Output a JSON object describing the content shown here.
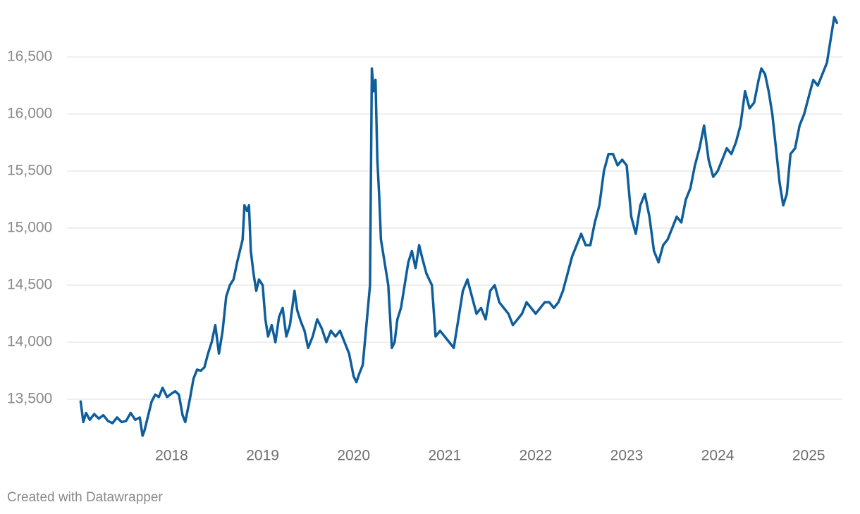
{
  "chart_data": {
    "type": "line",
    "x": [
      2017.0,
      2017.03,
      2017.06,
      2017.1,
      2017.15,
      2017.2,
      2017.25,
      2017.3,
      2017.35,
      2017.4,
      2017.45,
      2017.5,
      2017.55,
      2017.6,
      2017.65,
      2017.68,
      2017.7,
      2017.74,
      2017.78,
      2017.82,
      2017.86,
      2017.9,
      2017.95,
      2018.0,
      2018.04,
      2018.08,
      2018.12,
      2018.15,
      2018.2,
      2018.24,
      2018.28,
      2018.32,
      2018.36,
      2018.4,
      2018.44,
      2018.48,
      2018.52,
      2018.56,
      2018.6,
      2018.64,
      2018.68,
      2018.72,
      2018.75,
      2018.78,
      2018.8,
      2018.83,
      2018.85,
      2018.87,
      2018.9,
      2018.93,
      2018.96,
      2019.0,
      2019.03,
      2019.06,
      2019.1,
      2019.14,
      2019.18,
      2019.22,
      2019.26,
      2019.3,
      2019.35,
      2019.38,
      2019.42,
      2019.46,
      2019.5,
      2019.55,
      2019.6,
      2019.65,
      2019.7,
      2019.75,
      2019.8,
      2019.85,
      2019.9,
      2019.95,
      2020.0,
      2020.03,
      2020.06,
      2020.1,
      2020.14,
      2020.18,
      2020.2,
      2020.22,
      2020.24,
      2020.26,
      2020.28,
      2020.3,
      2020.34,
      2020.38,
      2020.42,
      2020.45,
      2020.48,
      2020.52,
      2020.56,
      2020.6,
      2020.64,
      2020.68,
      2020.72,
      2020.75,
      2020.8,
      2020.86,
      2020.9,
      2020.95,
      2021.0,
      2021.05,
      2021.1,
      2021.15,
      2021.2,
      2021.25,
      2021.3,
      2021.35,
      2021.4,
      2021.45,
      2021.5,
      2021.55,
      2021.6,
      2021.65,
      2021.7,
      2021.75,
      2021.8,
      2021.85,
      2021.9,
      2021.95,
      2022.0,
      2022.05,
      2022.1,
      2022.15,
      2022.2,
      2022.25,
      2022.3,
      2022.35,
      2022.4,
      2022.45,
      2022.5,
      2022.55,
      2022.6,
      2022.65,
      2022.7,
      2022.75,
      2022.8,
      2022.85,
      2022.9,
      2022.95,
      2023.0,
      2023.05,
      2023.1,
      2023.15,
      2023.2,
      2023.25,
      2023.3,
      2023.35,
      2023.4,
      2023.45,
      2023.5,
      2023.55,
      2023.6,
      2023.65,
      2023.7,
      2023.75,
      2023.8,
      2023.85,
      2023.9,
      2023.95,
      2024.0,
      2024.05,
      2024.1,
      2024.15,
      2024.2,
      2024.25,
      2024.3,
      2024.35,
      2024.4,
      2024.45,
      2024.48,
      2024.52,
      2024.56,
      2024.6,
      2024.64,
      2024.68,
      2024.72,
      2024.76,
      2024.8,
      2024.85,
      2024.9,
      2024.95,
      2025.0,
      2025.05,
      2025.1,
      2025.15,
      2025.2,
      2025.25,
      2025.28,
      2025.31
    ],
    "values": [
      13480,
      13300,
      13380,
      13320,
      13370,
      13330,
      13360,
      13310,
      13290,
      13340,
      13300,
      13310,
      13380,
      13320,
      13340,
      13180,
      13220,
      13350,
      13480,
      13540,
      13520,
      13600,
      13520,
      13550,
      13570,
      13540,
      13360,
      13300,
      13500,
      13680,
      13760,
      13750,
      13780,
      13900,
      14000,
      14150,
      13900,
      14100,
      14400,
      14500,
      14550,
      14700,
      14800,
      14900,
      15200,
      15150,
      15200,
      14800,
      14600,
      14450,
      14550,
      14500,
      14200,
      14050,
      14150,
      14000,
      14220,
      14300,
      14050,
      14150,
      14450,
      14280,
      14180,
      14100,
      13950,
      14050,
      14200,
      14120,
      14000,
      14100,
      14050,
      14100,
      14000,
      13900,
      13700,
      13650,
      13720,
      13800,
      14150,
      14500,
      16400,
      16200,
      16300,
      15600,
      15300,
      14900,
      14700,
      14500,
      13950,
      14000,
      14200,
      14300,
      14500,
      14700,
      14800,
      14650,
      14850,
      14750,
      14600,
      14500,
      14050,
      14100,
      14050,
      14000,
      13950,
      14200,
      14450,
      14550,
      14400,
      14250,
      14300,
      14200,
      14450,
      14500,
      14350,
      14300,
      14250,
      14150,
      14200,
      14250,
      14350,
      14300,
      14250,
      14300,
      14350,
      14350,
      14300,
      14350,
      14450,
      14600,
      14750,
      14850,
      14950,
      14850,
      14850,
      15050,
      15200,
      15500,
      15650,
      15650,
      15550,
      15600,
      15550,
      15100,
      14950,
      15200,
      15300,
      15100,
      14800,
      14700,
      14850,
      14900,
      15000,
      15100,
      15050,
      15250,
      15350,
      15550,
      15700,
      15900,
      15600,
      15450,
      15500,
      15600,
      15700,
      15650,
      15750,
      15900,
      16200,
      16050,
      16100,
      16300,
      16400,
      16350,
      16200,
      16000,
      15700,
      15400,
      15200,
      15300,
      15650,
      15700,
      15900,
      16000,
      16150,
      16300,
      16250,
      16350,
      16450,
      16700,
      16850,
      16800
    ],
    "color": "#0f5e9c",
    "xlim": [
      2016.85,
      2025.37
    ],
    "xticks": [
      2018,
      2019,
      2020,
      2021,
      2022,
      2023,
      2024,
      2025
    ],
    "ylim": [
      13150,
      16900
    ],
    "yticks": [
      {
        "value": 13500,
        "label": "13,500"
      },
      {
        "value": 14000,
        "label": "14,000"
      },
      {
        "value": 14500,
        "label": "14,500"
      },
      {
        "value": 15000,
        "label": "15,000"
      },
      {
        "value": 15500,
        "label": "15,500"
      },
      {
        "value": 16000,
        "label": "16,000"
      },
      {
        "value": 16500,
        "label": "16,500"
      }
    ],
    "grid": true,
    "footer": "Created with Datawrapper"
  }
}
